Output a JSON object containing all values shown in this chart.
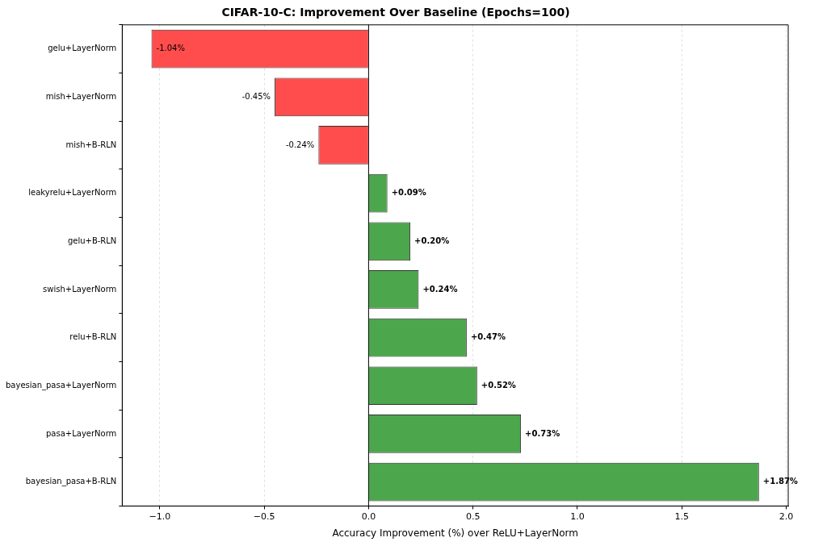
{
  "chart_data": {
    "type": "bar",
    "orientation": "horizontal",
    "title": "CIFAR-10-C: Improvement Over Baseline (Epochs=100)",
    "xlabel": "Accuracy Improvement (%) over ReLU+LayerNorm",
    "categories": [
      "gelu+LayerNorm",
      "mish+LayerNorm",
      "mish+B-RLN",
      "leakyrelu+LayerNorm",
      "gelu+B-RLN",
      "swish+LayerNorm",
      "relu+B-RLN",
      "bayesian_pasa+LayerNorm",
      "pasa+LayerNorm",
      "bayesian_pasa+B-RLN"
    ],
    "values": [
      -1.04,
      -0.45,
      -0.24,
      0.09,
      0.2,
      0.24,
      0.47,
      0.52,
      0.73,
      1.87
    ],
    "value_labels": [
      "-1.04%",
      "-0.45%",
      "-0.24%",
      "+0.09%",
      "+0.20%",
      "+0.24%",
      "+0.47%",
      "+0.52%",
      "+0.73%",
      "+1.87%"
    ],
    "colors": [
      "#ff4d4d",
      "#ff4d4d",
      "#ff4d4d",
      "#4ca64c",
      "#4ca64c",
      "#4ca64c",
      "#4ca64c",
      "#4ca64c",
      "#4ca64c",
      "#4ca64c"
    ],
    "xlim": [
      -1.18,
      2.01
    ],
    "xticks": [
      {
        "value": -1.0,
        "label": "−1.0"
      },
      {
        "value": -0.5,
        "label": "−0.5"
      },
      {
        "value": 0.0,
        "label": "0.0"
      },
      {
        "value": 0.5,
        "label": "0.5"
      },
      {
        "value": 1.0,
        "label": "1.0"
      },
      {
        "value": 1.5,
        "label": "1.5"
      },
      {
        "value": 2.0,
        "label": "2.0"
      }
    ],
    "grid": "x",
    "ref_lines": [
      {
        "axis": "x",
        "value": 0,
        "color": "#000000"
      }
    ]
  }
}
